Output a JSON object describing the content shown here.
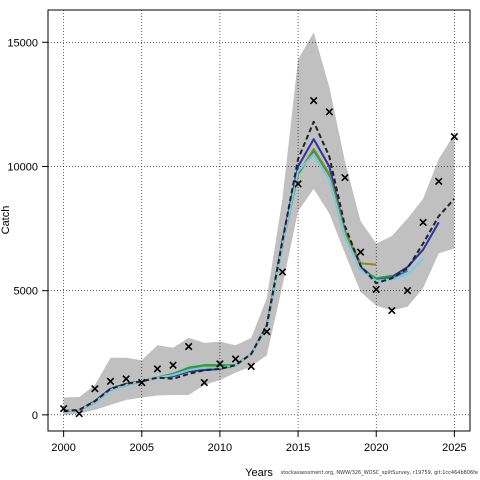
{
  "chart_data": {
    "type": "line",
    "xlabel": "Years",
    "ylabel": "Catch",
    "xlim": [
      1999.0,
      2026.0
    ],
    "ylim": [
      -650,
      16300
    ],
    "x_ticks": [
      2000,
      2005,
      2010,
      2015,
      2020,
      2025
    ],
    "y_ticks": [
      0,
      5000,
      10000,
      15000
    ],
    "grid": true,
    "grid_style": "dotted",
    "footer": "stockassessment.org, NWW/326_WOSC_splitSurvey, r19759, git:1cc464b806fe",
    "colors": {
      "band": "#c0c0c0",
      "observed": "#000000",
      "final_fit": "#222222",
      "retro_blue": "#3030a0",
      "retro_olive": "#8a8a20",
      "retro_green": "#20a040",
      "retro_teal": "#2e8b8b",
      "retro_lightblue": "#7ec8e3"
    },
    "band": {
      "x": [
        2000,
        2001,
        2002,
        2003,
        2004,
        2005,
        2006,
        2007,
        2008,
        2009,
        2010,
        2011,
        2012,
        2013,
        2014,
        2015,
        2016,
        2017,
        2018,
        2019,
        2020,
        2021,
        2022,
        2023,
        2024,
        2025
      ],
      "upper": [
        700,
        720,
        1200,
        2300,
        2300,
        2200,
        2800,
        2700,
        3100,
        2900,
        2950,
        2800,
        3100,
        4700,
        8700,
        14300,
        15400,
        13200,
        10200,
        7800,
        6900,
        7200,
        7900,
        8700,
        10300,
        11300
      ],
      "lower": [
        -10,
        50,
        200,
        400,
        600,
        700,
        780,
        800,
        800,
        1200,
        1400,
        1700,
        1950,
        2400,
        5200,
        8200,
        9100,
        8100,
        6500,
        4950,
        4400,
        4200,
        4350,
        5100,
        6500,
        6700
      ]
    },
    "observed": {
      "x": [
        2000,
        2001,
        2002,
        2003,
        2004,
        2005,
        2006,
        2007,
        2008,
        2009,
        2010,
        2011,
        2012,
        2013,
        2014,
        2015,
        2016,
        2017,
        2018,
        2019,
        2020,
        2021,
        2022,
        2023,
        2024,
        2025
      ],
      "y": [
        250,
        50,
        1050,
        1350,
        1450,
        1300,
        1850,
        2000,
        2750,
        1300,
        2050,
        2250,
        1950,
        3350,
        5750,
        9300,
        12650,
        12200,
        9550,
        6550,
        5050,
        4200,
        5000,
        7750,
        9400,
        11200
      ]
    },
    "series": [
      {
        "name": "",
        "style": "dashed",
        "x": [
          2000,
          2001,
          2002,
          2003,
          2004,
          2005,
          2006,
          2007,
          2008,
          2009,
          2010,
          2011,
          2012,
          2013,
          2014,
          2015,
          2016,
          2017,
          2018,
          2019,
          2020,
          2021,
          2022,
          2023,
          2024,
          2025
        ],
        "y": [
          150,
          200,
          550,
          1050,
          1250,
          1350,
          1500,
          1450,
          1650,
          1800,
          1850,
          2000,
          2450,
          3600,
          7000,
          10300,
          11800,
          10400,
          7600,
          6000,
          5300,
          5500,
          5900,
          6900,
          8000,
          8700
        ]
      },
      {
        "name": "",
        "x": [
          2000,
          2001,
          2002,
          2003,
          2004,
          2005,
          2006,
          2007,
          2008,
          2009,
          2010,
          2011,
          2012,
          2013,
          2014,
          2015,
          2016,
          2017,
          2018,
          2019,
          2020,
          2021,
          2022,
          2023,
          2024
        ],
        "y": [
          150,
          200,
          550,
          1050,
          1250,
          1350,
          1500,
          1550,
          1750,
          1800,
          1850,
          2000,
          2450,
          3600,
          7000,
          10000,
          11100,
          10000,
          7400,
          5950,
          5450,
          5550,
          5950,
          6650,
          7750
        ]
      },
      {
        "name": "",
        "x": [
          2000,
          2001,
          2002,
          2003,
          2004,
          2005,
          2006,
          2007,
          2008,
          2009,
          2010,
          2011,
          2012,
          2013,
          2014,
          2015,
          2016,
          2017,
          2018,
          2019,
          2020
        ],
        "y": [
          150,
          200,
          500,
          1000,
          1200,
          1350,
          1500,
          1650,
          1850,
          1950,
          1950,
          2000,
          2450,
          3600,
          6900,
          9700,
          10700,
          9700,
          7400,
          6100,
          6050
        ]
      },
      {
        "name": "",
        "x": [
          2000,
          2001,
          2002,
          2003,
          2004,
          2005,
          2006,
          2007,
          2008,
          2009,
          2010,
          2011,
          2012,
          2013,
          2014,
          2015,
          2016,
          2017,
          2018,
          2019,
          2020,
          2021
        ],
        "y": [
          150,
          200,
          500,
          1000,
          1200,
          1350,
          1500,
          1650,
          1900,
          2000,
          2000,
          2000,
          2450,
          3550,
          6850,
          9700,
          10600,
          9550,
          7250,
          5850,
          5500,
          5600
        ]
      },
      {
        "name": "",
        "x": [
          2000,
          2001,
          2002,
          2003,
          2004,
          2005,
          2006,
          2007,
          2008,
          2009,
          2010,
          2011,
          2012,
          2013,
          2014,
          2015,
          2016,
          2017,
          2018,
          2019,
          2020,
          2021,
          2022
        ],
        "y": [
          150,
          200,
          500,
          1000,
          1200,
          1350,
          1500,
          1600,
          1800,
          1900,
          1900,
          2000,
          2450,
          3550,
          6850,
          9800,
          10500,
          9500,
          7200,
          5850,
          5400,
          5500,
          5800
        ]
      },
      {
        "name": "",
        "x": [
          2000,
          2001,
          2002,
          2003,
          2004,
          2005,
          2006,
          2007,
          2008,
          2009,
          2010,
          2011,
          2012,
          2013,
          2014,
          2015,
          2016,
          2017,
          2018,
          2019,
          2020,
          2021,
          2022,
          2023
        ],
        "y": [
          150,
          200,
          500,
          1000,
          1200,
          1350,
          1500,
          1600,
          1800,
          1900,
          1900,
          2000,
          2450,
          3550,
          6850,
          9800,
          10500,
          9500,
          7200,
          5850,
          5400,
          5450,
          5650,
          6300
        ]
      }
    ]
  }
}
